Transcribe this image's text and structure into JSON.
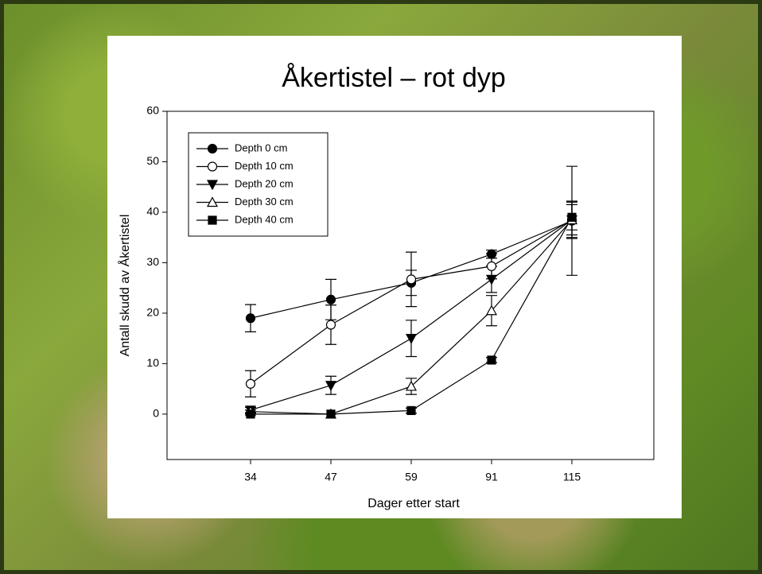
{
  "chart_data": {
    "type": "line",
    "title": "Åkertistel – rot dyp",
    "x_label": "Dager etter start",
    "y_label": "Antall skudd av Åkertistel",
    "categories": [
      "34",
      "47",
      "59",
      "91",
      "115"
    ],
    "ylim": [
      -9,
      60
    ],
    "yticks": [
      0,
      10,
      20,
      30,
      40,
      50,
      60
    ],
    "legend": "upper left",
    "series": [
      {
        "name": "Depth 0 cm",
        "color": "#000000",
        "marker": "circle",
        "filled": true,
        "values": [
          19,
          22.7,
          26,
          31.7,
          38.3
        ],
        "errors": [
          2.7,
          4,
          2.5,
          0.8,
          10.8
        ]
      },
      {
        "name": "Depth 10 cm",
        "color": "#000000",
        "marker": "circle",
        "filled": false,
        "values": [
          6,
          17.7,
          26.7,
          29.3,
          38.5
        ],
        "errors": [
          2.6,
          3.9,
          5.4,
          2.5,
          3.7
        ]
      },
      {
        "name": "Depth 20 cm",
        "color": "#000000",
        "marker": "triangle-down",
        "filled": true,
        "values": [
          0.8,
          5.7,
          15,
          26.7,
          38.5
        ],
        "errors": [
          0.5,
          1.8,
          3.6,
          2.6,
          3
        ]
      },
      {
        "name": "Depth 30 cm",
        "color": "#000000",
        "marker": "triangle-up",
        "filled": false,
        "values": [
          0.5,
          0,
          5.5,
          20.5,
          38.5
        ],
        "errors": [
          0.3,
          0,
          1.6,
          3,
          3.5
        ]
      },
      {
        "name": "Depth 40 cm",
        "color": "#000000",
        "marker": "square",
        "filled": true,
        "values": [
          0,
          0,
          0.7,
          10.7,
          39
        ],
        "errors": [
          0,
          0,
          0.5,
          0.5,
          2.5
        ]
      }
    ]
  }
}
